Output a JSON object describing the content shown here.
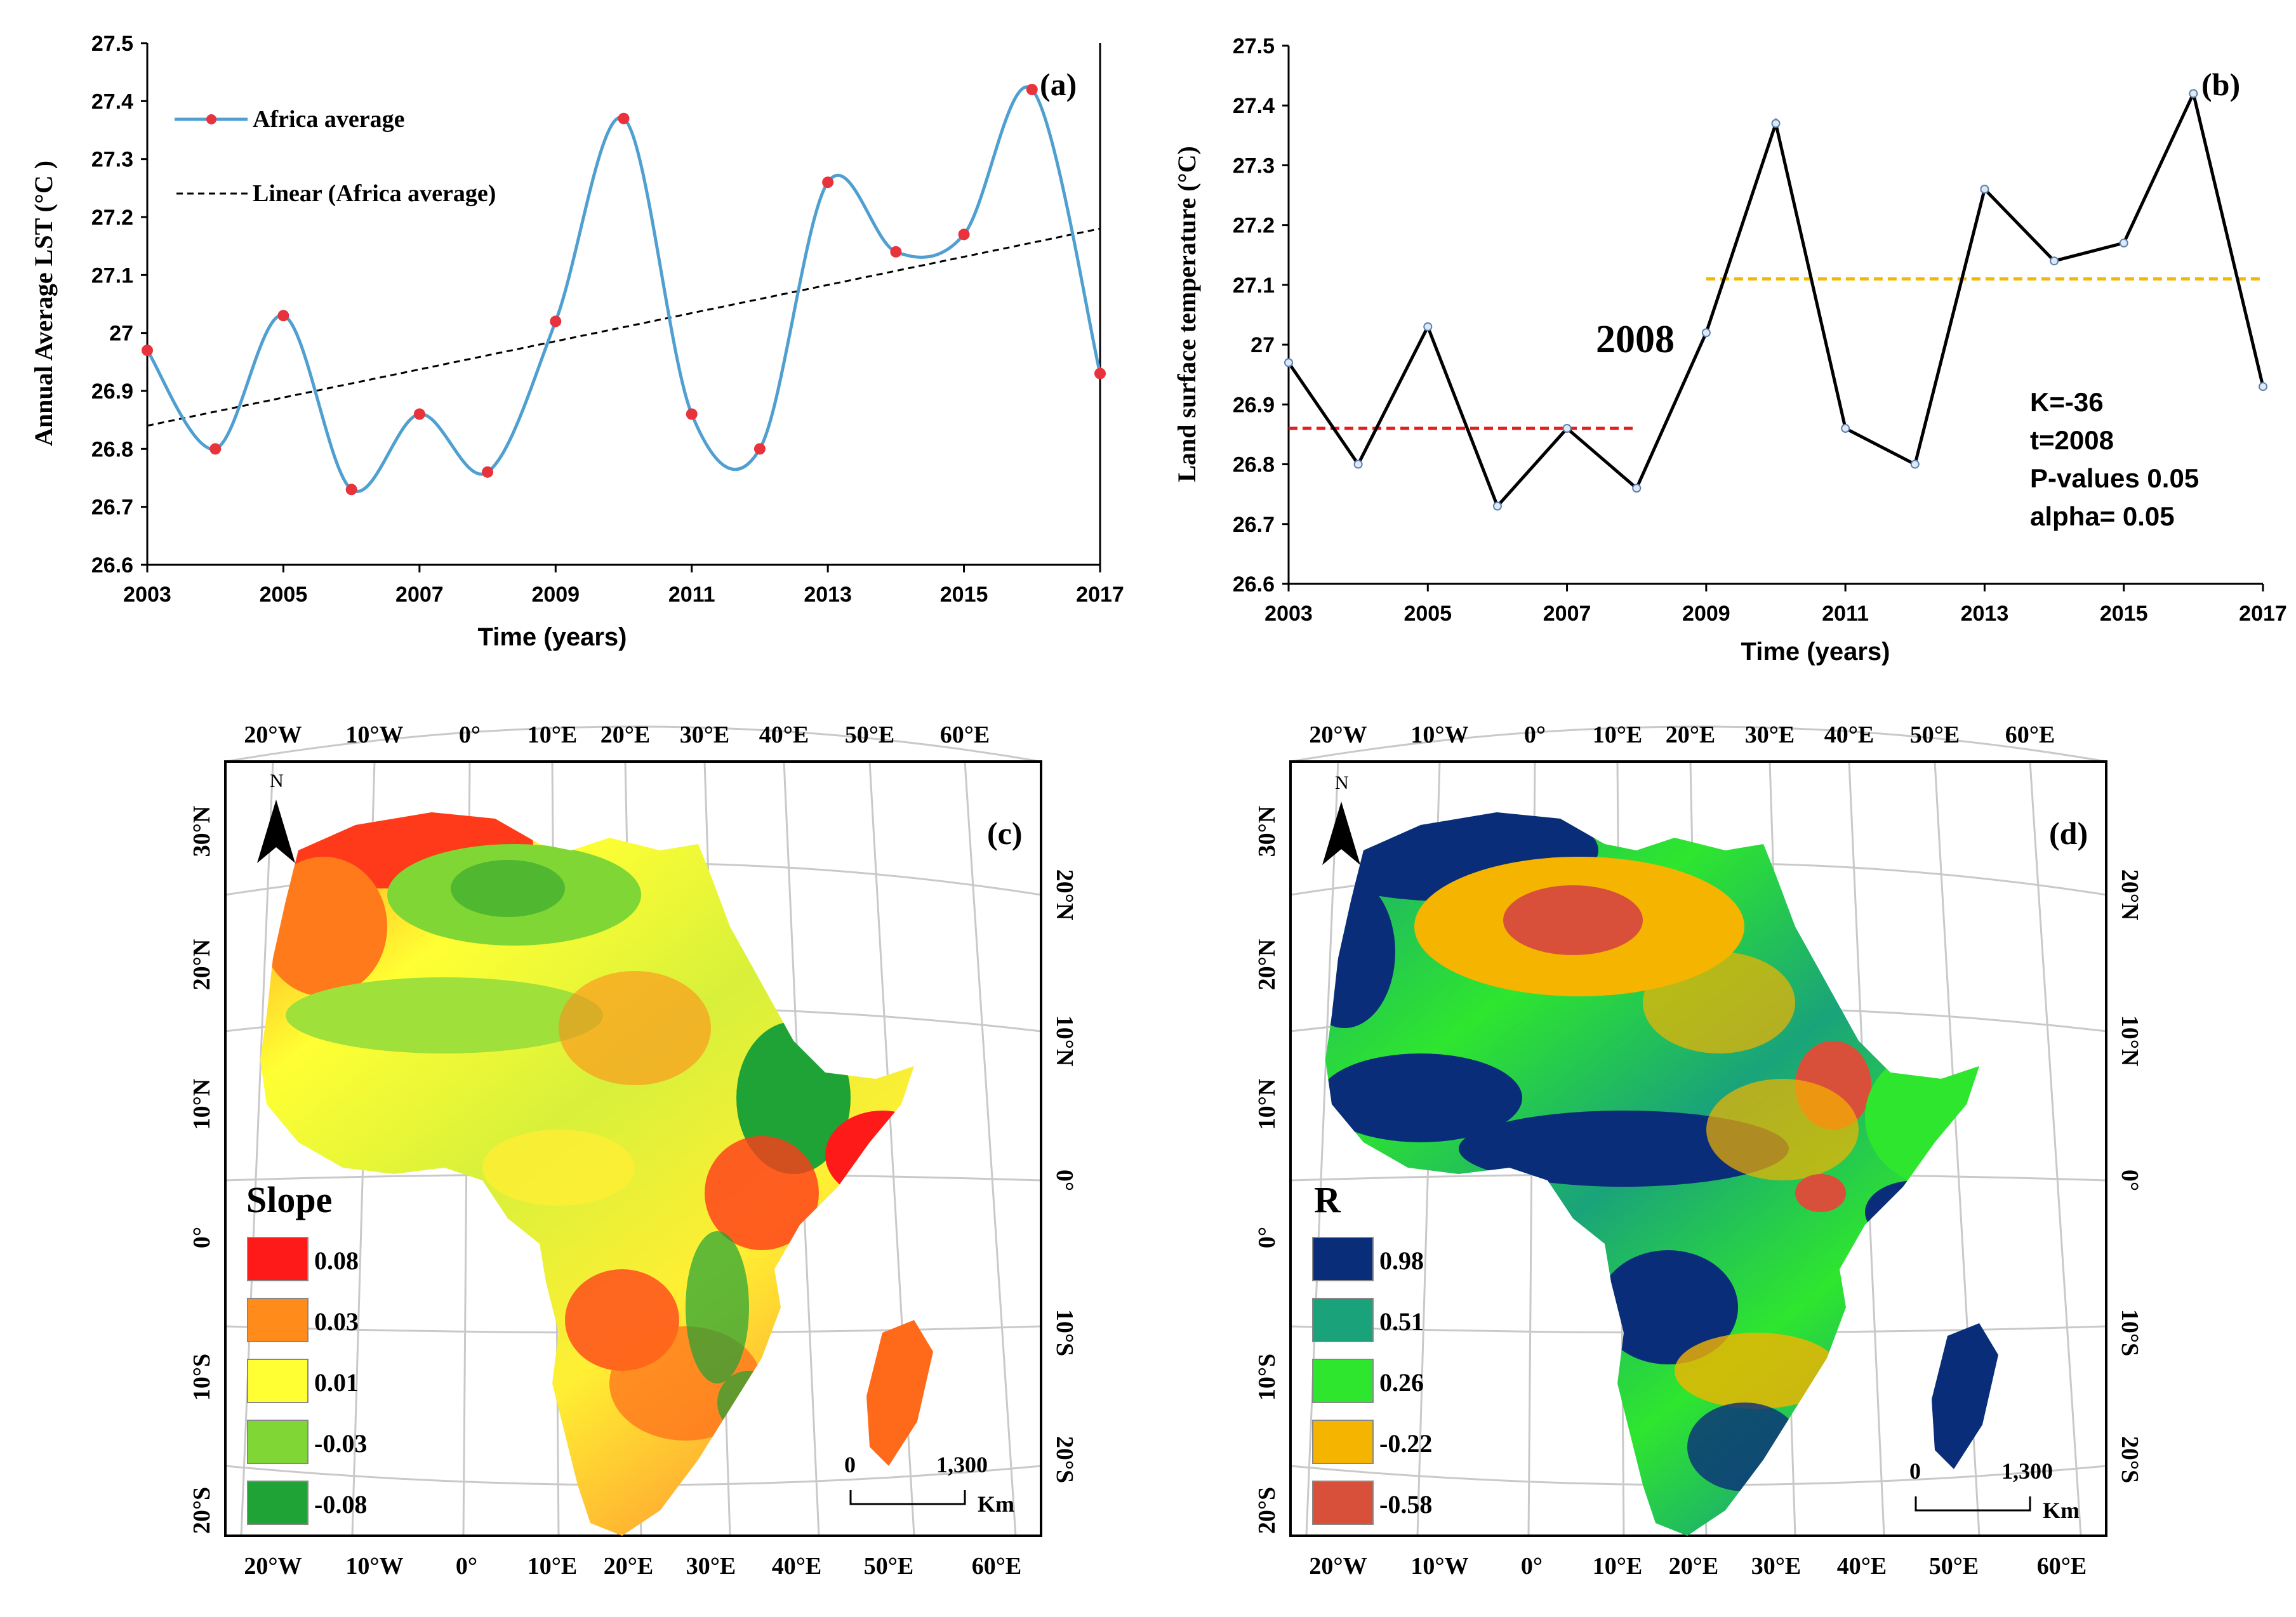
{
  "chart_data": [
    {
      "type": "line",
      "panel": "(a)",
      "ylabel": "Annual Average LST (°C )",
      "xlabel": "Time (years)",
      "x": [
        2003,
        2004,
        2005,
        2006,
        2007,
        2008,
        2009,
        2010,
        2011,
        2012,
        2013,
        2014,
        2015,
        2016,
        2017
      ],
      "xticks": [
        "2003",
        "2005",
        "2007",
        "2009",
        "2011",
        "2013",
        "2015",
        "2017"
      ],
      "yticks": [
        "26.6",
        "26.7",
        "26.8",
        "26.9",
        "27",
        "27.1",
        "27.2",
        "27.3",
        "27.4",
        "27.5"
      ],
      "xlim": [
        2003,
        2017
      ],
      "ylim": [
        26.6,
        27.5
      ],
      "series": [
        {
          "name": "Africa average",
          "values": [
            26.97,
            26.8,
            27.03,
            26.73,
            26.86,
            26.76,
            27.02,
            27.37,
            26.86,
            26.8,
            27.26,
            27.14,
            27.17,
            27.42,
            26.93
          ],
          "color": "#4f9fd1",
          "marker_color": "#e8323c",
          "smooth": true
        },
        {
          "name": "Linear (Africa average)",
          "trend_start": 26.84,
          "trend_end": 27.18,
          "style": "dashed",
          "color": "#000000"
        }
      ],
      "legend": "top-left"
    },
    {
      "type": "line",
      "panel": "(b)",
      "ylabel": "Land surface temperature (°C)",
      "xlabel": "Time (years)",
      "x": [
        2003,
        2004,
        2005,
        2006,
        2007,
        2008,
        2009,
        2010,
        2011,
        2012,
        2013,
        2014,
        2015,
        2016,
        2017
      ],
      "xticks": [
        "2003",
        "2005",
        "2007",
        "2009",
        "2011",
        "2013",
        "2015",
        "2017"
      ],
      "yticks": [
        "26.6",
        "26.7",
        "26.8",
        "26.9",
        "27",
        "27.1",
        "27.2",
        "27.3",
        "27.4",
        "27.5"
      ],
      "xlim": [
        2003,
        2017
      ],
      "ylim": [
        26.6,
        27.5
      ],
      "series": [
        {
          "values": [
            26.97,
            26.8,
            27.03,
            26.73,
            26.86,
            26.76,
            27.02,
            27.37,
            26.86,
            26.8,
            27.26,
            27.14,
            27.17,
            27.42,
            26.93
          ],
          "color": "#000000"
        }
      ],
      "mean_before": {
        "x_range": [
          2003,
          2008
        ],
        "y": 26.86,
        "color": "#e02020"
      },
      "mean_after": {
        "x_range": [
          2009,
          2017
        ],
        "y": 27.11,
        "color": "#f5b800"
      },
      "change_point_label": "2008",
      "stats": [
        "K=-36",
        "t=2008",
        "P-values 0.05",
        "alpha= 0.05"
      ]
    }
  ],
  "maps": {
    "c": {
      "panel": "(c)",
      "north": "N",
      "top_labels": [
        "20°W",
        "10°W",
        "0°",
        "10°E",
        "20°E",
        "30°E",
        "40°E",
        "50°E",
        "60°E"
      ],
      "bottom_labels": [
        "20°W",
        "10°W",
        "0°",
        "10°E",
        "20°E",
        "30°E",
        "40°E",
        "50°E",
        "60°E"
      ],
      "left_labels": [
        "30°N",
        "20°N",
        "10°N",
        "0°",
        "10°S",
        "20°S"
      ],
      "right_labels": [
        "20°N",
        "10°N",
        "0°",
        "10°S",
        "20°S"
      ],
      "legend_title": "Slope",
      "legend": [
        {
          "label": "0.08",
          "color": "#ff1a1a"
        },
        {
          "label": "0.03",
          "color": "#ff8c1a"
        },
        {
          "label": "0.01",
          "color": "#ffff33"
        },
        {
          "label": "-0.03",
          "color": "#7fd634"
        },
        {
          "label": "-0.08",
          "color": "#20a336"
        }
      ],
      "scale": {
        "start": "0",
        "end": "1,300",
        "unit": "Km"
      }
    },
    "d": {
      "panel": "(d)",
      "north": "N",
      "top_labels": [
        "20°W",
        "10°W",
        "0°",
        "10°E",
        "20°E",
        "30°E",
        "40°E",
        "50°E",
        "60°E"
      ],
      "bottom_labels": [
        "20°W",
        "10°W",
        "0°",
        "10°E",
        "20°E",
        "30°E",
        "40°E",
        "50°E",
        "60°E"
      ],
      "left_labels": [
        "30°N",
        "20°N",
        "10°N",
        "0°",
        "10°S",
        "20°S"
      ],
      "right_labels": [
        "20°N",
        "10°N",
        "0°",
        "10°S",
        "20°S"
      ],
      "legend_title": "R",
      "legend": [
        {
          "label": "0.98",
          "color": "#0a2d7a"
        },
        {
          "label": "0.51",
          "color": "#1aa37a"
        },
        {
          "label": "0.26",
          "color": "#2ee62e"
        },
        {
          "label": "-0.22",
          "color": "#f5b400"
        },
        {
          "label": "-0.58",
          "color": "#d9503a"
        }
      ],
      "scale": {
        "start": "0",
        "end": "1,300",
        "unit": "Km"
      }
    }
  }
}
